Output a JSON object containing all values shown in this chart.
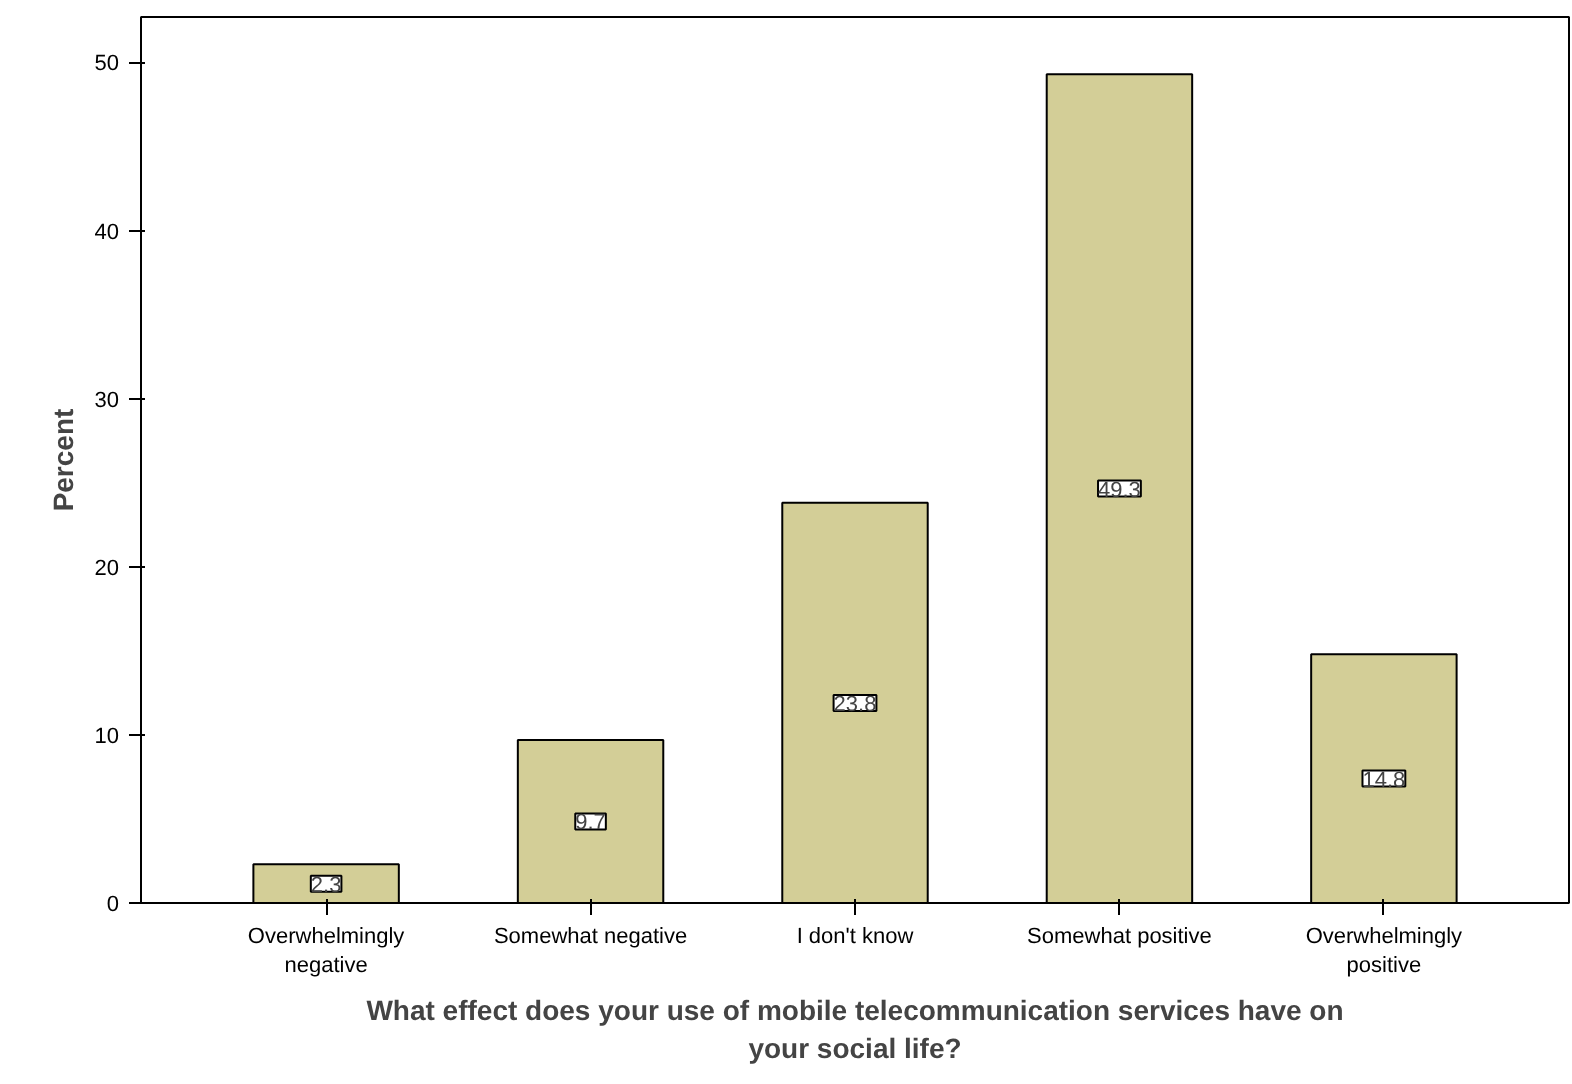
{
  "chart_data": {
    "type": "bar",
    "xlabel": "What effect does your use of mobile telecommunication services have on your social life?",
    "ylabel": "Percent",
    "categories": [
      "Overwhelmingly negative",
      "Somewhat negative",
      "I don't know",
      "Somewhat positive",
      "Overwhelmingly positive"
    ],
    "values": [
      2.3,
      9.7,
      23.8,
      49.3,
      14.8
    ],
    "color": "#d3ce97",
    "data_labels": true,
    "ylim": [
      0,
      52.7
    ],
    "yticks": [
      0,
      10,
      20,
      30,
      40,
      50
    ],
    "grid": false
  }
}
